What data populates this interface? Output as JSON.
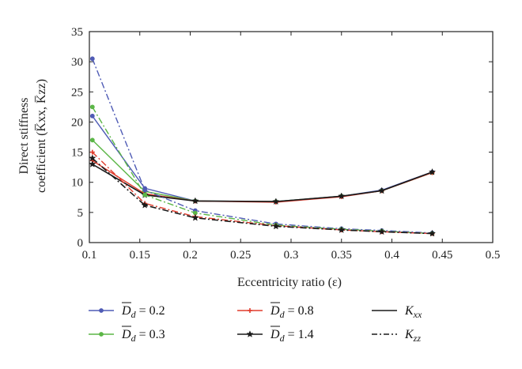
{
  "chart_data": {
    "type": "line",
    "xlabel": "Eccentricity ratio (ε)",
    "ylabel_line1": "Direct stiffness",
    "ylabel_line2": "coefficient (K̅xx, K̅zz)",
    "xlim": [
      0.1,
      0.5
    ],
    "ylim": [
      0,
      35
    ],
    "xticks": [
      "0.1",
      "0.15",
      "0.2",
      "0.25",
      "0.3",
      "0.35",
      "0.4",
      "0.45",
      "0.5"
    ],
    "yticks": [
      "0",
      "5",
      "10",
      "15",
      "20",
      "25",
      "30",
      "35"
    ],
    "grid": false,
    "legend_position": "bottom",
    "series": [
      {
        "name": "D̅d = 0.2",
        "color": "#4f5bb5",
        "marker": "circle",
        "coefficient": "Kxx",
        "style": "solid",
        "x": [
          0.103,
          0.155,
          0.205,
          0.285,
          0.35,
          0.39,
          0.44
        ],
        "y": [
          21.0,
          9.0,
          6.9,
          6.8,
          7.7,
          8.7,
          11.7
        ]
      },
      {
        "name": "D̅d = 0.3",
        "color": "#5bb646",
        "marker": "circle",
        "coefficient": "Kxx",
        "style": "solid",
        "x": [
          0.103,
          0.155,
          0.205,
          0.285,
          0.35,
          0.39,
          0.44
        ],
        "y": [
          17.0,
          8.5,
          6.9,
          6.8,
          7.7,
          8.6,
          11.6
        ]
      },
      {
        "name": "D̅d = 0.8",
        "color": "#e03b2c",
        "marker": "plus",
        "coefficient": "Kxx",
        "style": "solid",
        "x": [
          0.103,
          0.155,
          0.205,
          0.285,
          0.35,
          0.39,
          0.44
        ],
        "y": [
          13.6,
          8.1,
          6.9,
          6.7,
          7.6,
          8.6,
          11.6
        ]
      },
      {
        "name": "D̅d = 1.4",
        "color": "#1a1a1a",
        "marker": "star",
        "coefficient": "Kxx",
        "style": "solid",
        "x": [
          0.103,
          0.155,
          0.205,
          0.285,
          0.35,
          0.39,
          0.44
        ],
        "y": [
          13.0,
          7.9,
          6.9,
          6.8,
          7.7,
          8.6,
          11.7
        ]
      },
      {
        "name": "D̅d = 0.2",
        "color": "#4f5bb5",
        "marker": "circle",
        "coefficient": "Kzz",
        "style": "dashdot",
        "x": [
          0.103,
          0.155,
          0.205,
          0.285,
          0.35,
          0.39,
          0.44
        ],
        "y": [
          30.5,
          8.7,
          5.3,
          3.1,
          2.3,
          2.0,
          1.6
        ]
      },
      {
        "name": "D̅d = 0.3",
        "color": "#5bb646",
        "marker": "circle",
        "coefficient": "Kzz",
        "style": "dashdot",
        "x": [
          0.103,
          0.155,
          0.205,
          0.285,
          0.35,
          0.39,
          0.44
        ],
        "y": [
          22.5,
          7.9,
          4.9,
          2.9,
          2.2,
          1.9,
          1.5
        ]
      },
      {
        "name": "D̅d = 0.8",
        "color": "#e03b2c",
        "marker": "plus",
        "coefficient": "Kzz",
        "style": "dashdot",
        "x": [
          0.103,
          0.155,
          0.205,
          0.285,
          0.35,
          0.39,
          0.44
        ],
        "y": [
          15.0,
          6.5,
          4.3,
          2.8,
          2.1,
          1.8,
          1.5
        ]
      },
      {
        "name": "D̅d = 1.4",
        "color": "#1a1a1a",
        "marker": "star",
        "coefficient": "Kzz",
        "style": "dashdot",
        "x": [
          0.103,
          0.155,
          0.205,
          0.285,
          0.35,
          0.39,
          0.44
        ],
        "y": [
          14.0,
          6.2,
          4.1,
          2.7,
          2.1,
          1.8,
          1.5
        ]
      }
    ],
    "legend": [
      {
        "label_prefix": "D",
        "label_sub": "d",
        "label_value": " = 0.2",
        "color": "#4f5bb5",
        "marker": "circle",
        "style": "solid"
      },
      {
        "label_prefix": "D",
        "label_sub": "d",
        "label_value": " = 0.3",
        "color": "#5bb646",
        "marker": "circle",
        "style": "solid"
      },
      {
        "label_prefix": "D",
        "label_sub": "d",
        "label_value": " = 0.8",
        "color": "#e03b2c",
        "marker": "plus",
        "style": "solid"
      },
      {
        "label_prefix": "D",
        "label_sub": "d",
        "label_value": " = 1.4",
        "color": "#1a1a1a",
        "marker": "star",
        "style": "solid"
      },
      {
        "label_prefix": "K",
        "label_sub": "xx",
        "label_value": "",
        "color": "#1a1a1a",
        "marker": "none",
        "style": "solid"
      },
      {
        "label_prefix": "K",
        "label_sub": "zz",
        "label_value": "",
        "color": "#1a1a1a",
        "marker": "none",
        "style": "dashdot"
      }
    ]
  }
}
